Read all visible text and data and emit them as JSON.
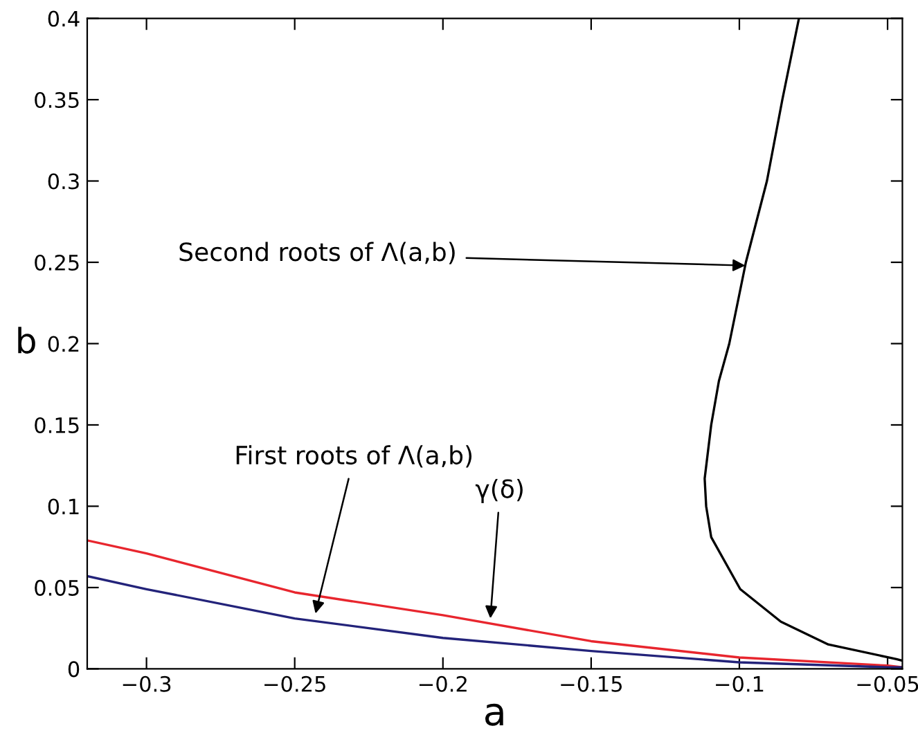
{
  "chart_data": {
    "type": "line",
    "xlabel": "a",
    "ylabel": "b",
    "xlim": [
      -0.32,
      -0.045
    ],
    "ylim": [
      0,
      0.4
    ],
    "xticks": [
      {
        "value": -0.3,
        "label": "−0.3"
      },
      {
        "value": -0.25,
        "label": "−0.25"
      },
      {
        "value": -0.2,
        "label": "−0.2"
      },
      {
        "value": -0.15,
        "label": "−0.15"
      },
      {
        "value": -0.1,
        "label": "−0.1"
      },
      {
        "value": -0.05,
        "label": "−0.05"
      }
    ],
    "yticks": [
      0,
      0.05,
      0.1,
      0.15,
      0.2,
      0.25,
      0.3,
      0.35,
      0.4
    ],
    "grid": false,
    "legend": false,
    "marker": "none",
    "line_style": "solid",
    "series": [
      {
        "color": "#e8262e",
        "x": [
          -0.32,
          -0.3,
          -0.25,
          -0.2,
          -0.15,
          -0.1,
          -0.05,
          -0.045
        ],
        "values": [
          0.079,
          0.071,
          0.047,
          0.033,
          0.017,
          0.007,
          0.002,
          0.001
        ]
      },
      {
        "color": "#23237a",
        "x": [
          -0.32,
          -0.3,
          -0.25,
          -0.2,
          -0.15,
          -0.1,
          -0.05,
          -0.045
        ],
        "values": [
          0.057,
          0.049,
          0.031,
          0.019,
          0.011,
          0.004,
          0.001,
          0.001
        ]
      },
      {
        "color": "#000000",
        "x": [
          -0.045,
          -0.047,
          -0.07,
          -0.086,
          -0.0997,
          -0.1095,
          -0.1112,
          -0.1117,
          -0.1095,
          -0.1069,
          -0.1034,
          -0.0978,
          -0.0907,
          -0.0855,
          -0.0799
        ],
        "values": [
          0.005,
          0.006,
          0.015,
          0.029,
          0.049,
          0.081,
          0.1,
          0.117,
          0.15,
          0.177,
          0.2,
          0.25,
          0.3,
          0.35,
          0.4
        ]
      }
    ],
    "annotations": [
      {
        "text": "Second roots of Λ(a,b)",
        "x": -0.098,
        "y": 0.248
      },
      {
        "text": "First roots of Λ(a,b)",
        "x": -0.243,
        "y": 0.034
      },
      {
        "text": "γ(δ)",
        "x": -0.184,
        "y": 0.031
      }
    ]
  }
}
